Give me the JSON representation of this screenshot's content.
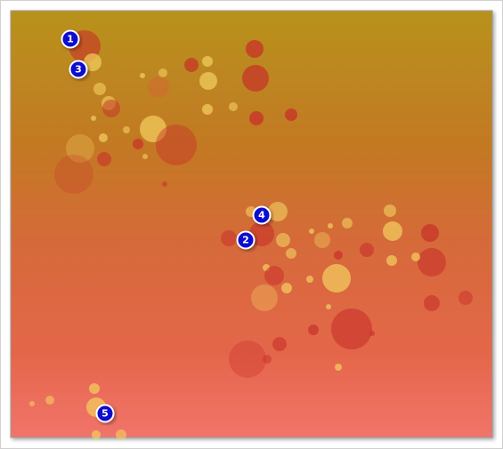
{
  "markers": [
    {
      "label": "1"
    },
    {
      "label": "2"
    },
    {
      "label": "3"
    },
    {
      "label": "4"
    },
    {
      "label": "5"
    }
  ]
}
